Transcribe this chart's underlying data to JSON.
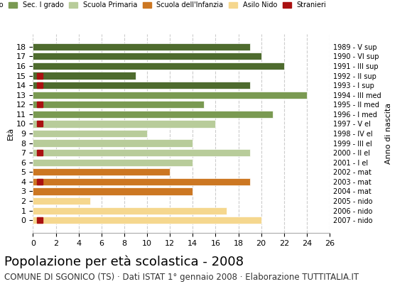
{
  "ages": [
    18,
    17,
    16,
    15,
    14,
    13,
    12,
    11,
    10,
    9,
    8,
    7,
    6,
    5,
    4,
    3,
    2,
    1,
    0
  ],
  "years": [
    "1989 - V sup",
    "1990 - VI sup",
    "1991 - III sup",
    "1992 - II sup",
    "1993 - I sup",
    "1994 - III med",
    "1995 - II med",
    "1996 - I med",
    "1997 - V el",
    "1998 - IV el",
    "1999 - III el",
    "2000 - II el",
    "2001 - I el",
    "2002 - mat",
    "2003 - mat",
    "2004 - mat",
    "2005 - nido",
    "2006 - nido",
    "2007 - nido"
  ],
  "values": [
    19,
    20,
    22,
    9,
    19,
    24,
    15,
    21,
    16,
    10,
    14,
    19,
    14,
    12,
    19,
    14,
    5,
    17,
    20
  ],
  "stranieri": [
    0,
    0,
    0,
    1,
    1,
    0,
    1,
    0,
    1,
    0,
    0,
    1,
    0,
    0,
    1,
    0,
    0,
    0,
    1
  ],
  "categories": {
    "Sec. II grado": {
      "ages": [
        18,
        17,
        16,
        15,
        14
      ],
      "color": "#4e6b2e"
    },
    "Sec. I grado": {
      "ages": [
        13,
        12,
        11
      ],
      "color": "#7a9a52"
    },
    "Scuola Primaria": {
      "ages": [
        10,
        9,
        8,
        7,
        6
      ],
      "color": "#b8cc9a"
    },
    "Scuola dell'Infanzia": {
      "ages": [
        5,
        4,
        3
      ],
      "color": "#cc7722"
    },
    "Asilo Nido": {
      "ages": [
        2,
        1,
        0
      ],
      "color": "#f5d78e"
    }
  },
  "stranieri_color": "#aa1111",
  "stranieri_size": 6,
  "bar_height": 0.75,
  "xlim": [
    0,
    26
  ],
  "xticks": [
    0,
    2,
    4,
    6,
    8,
    10,
    12,
    14,
    16,
    18,
    20,
    22,
    24,
    26
  ],
  "title": "Popolazione per età scolastica - 2008",
  "subtitle": "COMUNE DI SGONICO (TS) · Dati ISTAT 1° gennaio 2008 · Elaborazione TUTTITALIA.IT",
  "ylabel": "Età",
  "ylabel2": "Anno di nascita",
  "bg_color": "#ffffff",
  "grid_color": "#cccccc",
  "title_fontsize": 13,
  "subtitle_fontsize": 8.5,
  "tick_fontsize": 8,
  "legend_fontsize": 8
}
